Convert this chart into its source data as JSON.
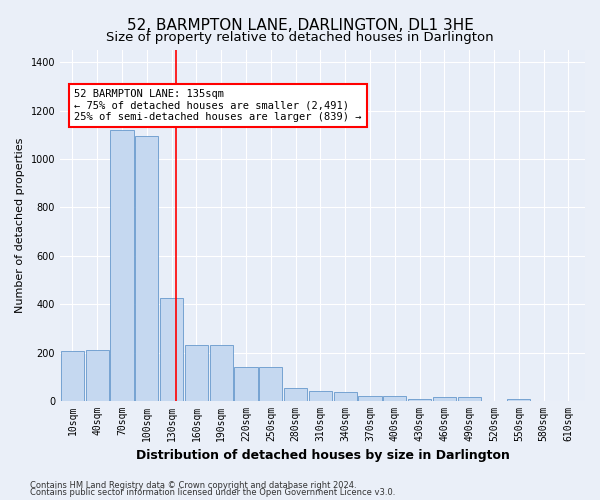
{
  "title": "52, BARMPTON LANE, DARLINGTON, DL1 3HE",
  "subtitle": "Size of property relative to detached houses in Darlington",
  "xlabel": "Distribution of detached houses by size in Darlington",
  "ylabel": "Number of detached properties",
  "footnote1": "Contains HM Land Registry data © Crown copyright and database right 2024.",
  "footnote2": "Contains public sector information licensed under the Open Government Licence v3.0.",
  "annotation_line1": "52 BARMPTON LANE: 135sqm",
  "annotation_line2": "← 75% of detached houses are smaller (2,491)",
  "annotation_line3": "25% of semi-detached houses are larger (839) →",
  "bar_color": "#c5d8f0",
  "bar_edge_color": "#6699cc",
  "red_line_x": 135,
  "categories": [
    10,
    40,
    70,
    100,
    130,
    160,
    190,
    220,
    250,
    280,
    310,
    340,
    370,
    400,
    430,
    460,
    490,
    520,
    550,
    580,
    610
  ],
  "values": [
    205,
    210,
    1120,
    1095,
    425,
    230,
    230,
    140,
    140,
    55,
    40,
    38,
    20,
    20,
    8,
    15,
    15,
    0,
    10,
    0,
    0
  ],
  "ylim": [
    0,
    1450
  ],
  "yticks": [
    0,
    200,
    400,
    600,
    800,
    1000,
    1200,
    1400
  ],
  "bg_color": "#e8eef8",
  "grid_color": "#ffffff",
  "fig_bg_color": "#eaeff8",
  "title_fontsize": 11,
  "subtitle_fontsize": 9.5,
  "xlabel_fontsize": 9,
  "ylabel_fontsize": 8,
  "tick_fontsize": 7,
  "footnote_fontsize": 6,
  "annot_fontsize": 7.5
}
